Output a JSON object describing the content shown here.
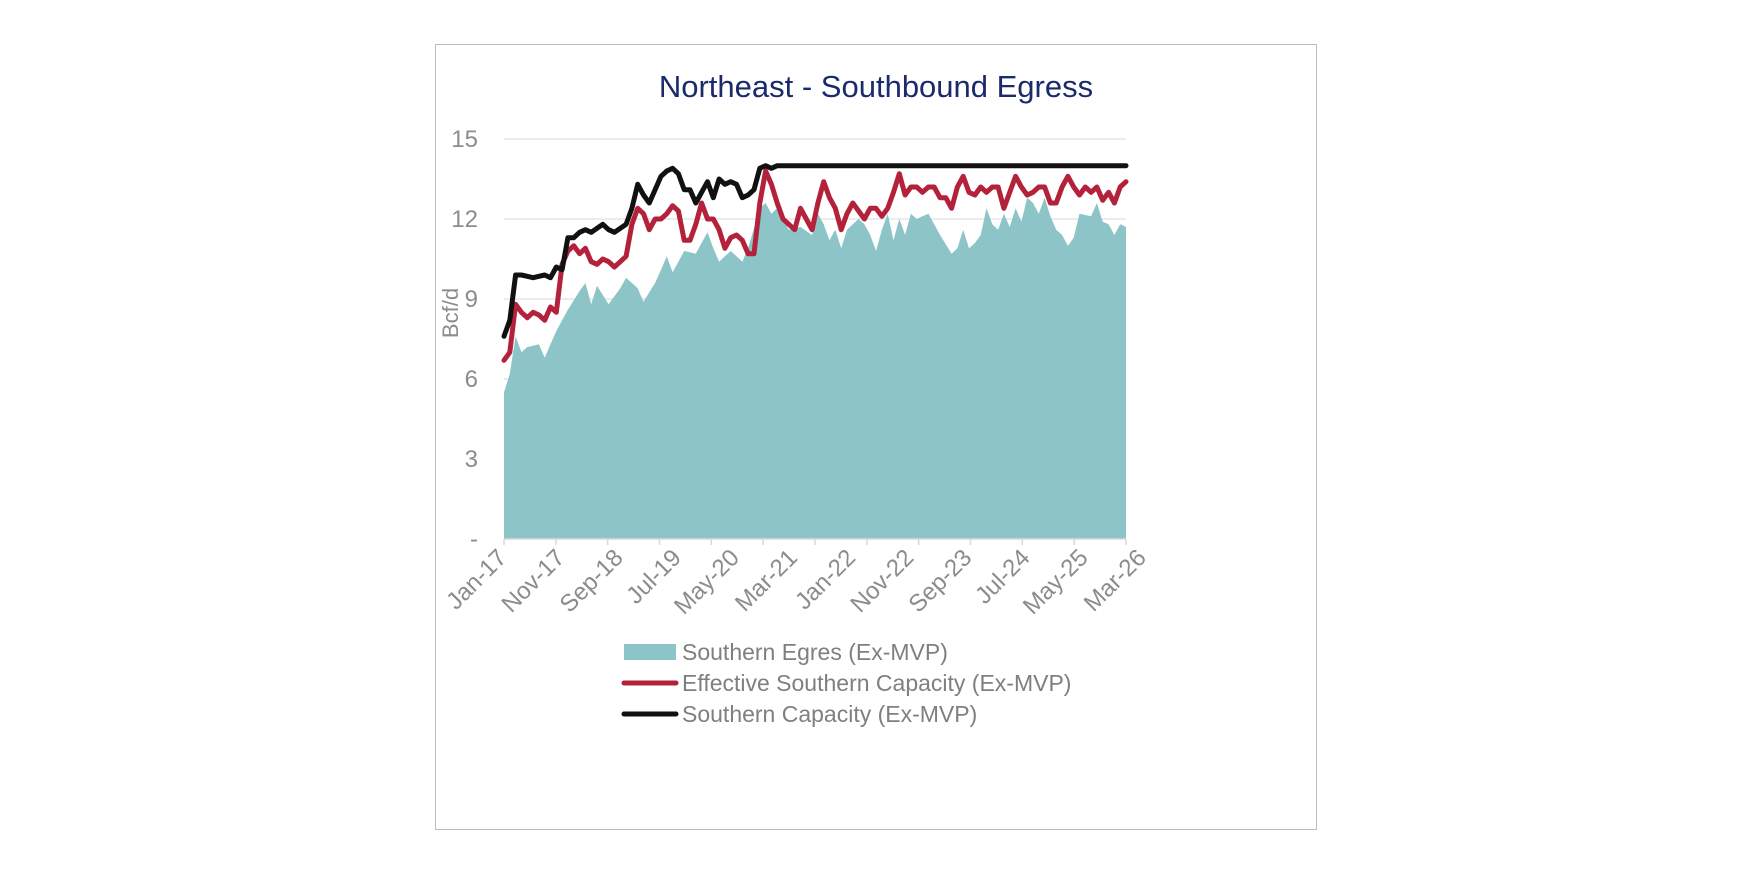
{
  "chart_data": {
    "type": "area",
    "title": "Northeast - Southbound Egress",
    "ylabel": "Bcf/d",
    "xlabel": "",
    "ylim": [
      0,
      15
    ],
    "yticks": [
      0,
      3,
      6,
      9,
      12,
      15
    ],
    "ytick_labels": [
      "-",
      "3",
      "6",
      "9",
      "12",
      "15"
    ],
    "xticks": [
      "Jan-17",
      "Nov-17",
      "Sep-18",
      "Jul-19",
      "May-20",
      "Mar-21",
      "Jan-22",
      "Nov-22",
      "Sep-23",
      "Jul-24",
      "May-25",
      "Mar-26"
    ],
    "grid": "horizontal",
    "legend_position": "bottom",
    "x_start": "Jan-17",
    "x_end": "Dec-26",
    "x_frequency": "monthly",
    "series": [
      {
        "name": "Southern Egres (Ex-MVP)",
        "kind": "area",
        "color": "#8cc4c7",
        "anchors": [
          [
            0,
            5.5
          ],
          [
            1,
            6.2
          ],
          [
            2,
            7.6
          ],
          [
            3,
            7.0
          ],
          [
            4,
            7.2
          ],
          [
            6,
            7.3
          ],
          [
            7,
            6.8
          ],
          [
            9,
            7.8
          ],
          [
            11,
            8.6
          ],
          [
            13,
            9.3
          ],
          [
            14,
            9.6
          ],
          [
            15,
            8.8
          ],
          [
            16,
            9.5
          ],
          [
            18,
            8.8
          ],
          [
            20,
            9.4
          ],
          [
            21,
            9.8
          ],
          [
            23,
            9.4
          ],
          [
            24,
            8.9
          ],
          [
            26,
            9.6
          ],
          [
            28,
            10.6
          ],
          [
            29,
            10.0
          ],
          [
            31,
            10.8
          ],
          [
            33,
            10.7
          ],
          [
            35,
            11.5
          ],
          [
            36,
            10.9
          ],
          [
            37,
            10.4
          ],
          [
            39,
            10.8
          ],
          [
            41,
            10.4
          ],
          [
            42,
            10.9
          ],
          [
            44,
            12.4
          ],
          [
            45,
            12.6
          ],
          [
            46,
            12.2
          ],
          [
            47,
            12.4
          ],
          [
            49,
            11.6
          ],
          [
            51,
            11.7
          ],
          [
            53,
            11.4
          ],
          [
            54,
            12.2
          ],
          [
            55,
            11.8
          ],
          [
            56,
            11.2
          ],
          [
            57,
            11.6
          ],
          [
            58,
            10.9
          ],
          [
            59,
            11.6
          ],
          [
            61,
            12.0
          ],
          [
            62,
            11.8
          ],
          [
            63,
            11.4
          ],
          [
            64,
            10.8
          ],
          [
            65,
            11.6
          ],
          [
            66,
            12.2
          ],
          [
            67,
            11.2
          ],
          [
            68,
            12.0
          ],
          [
            69,
            11.4
          ],
          [
            70,
            12.2
          ],
          [
            71,
            12.0
          ],
          [
            73,
            12.2
          ],
          [
            74,
            11.8
          ],
          [
            75,
            11.4
          ],
          [
            77,
            10.7
          ],
          [
            78,
            10.9
          ],
          [
            79,
            11.6
          ],
          [
            80,
            10.9
          ],
          [
            81,
            11.1
          ],
          [
            82,
            11.4
          ],
          [
            83,
            12.4
          ],
          [
            84,
            11.8
          ],
          [
            85,
            11.6
          ],
          [
            86,
            12.2
          ],
          [
            87,
            11.7
          ],
          [
            88,
            12.4
          ],
          [
            89,
            11.9
          ],
          [
            90,
            12.8
          ],
          [
            91,
            12.6
          ],
          [
            92,
            12.2
          ],
          [
            93,
            12.8
          ],
          [
            94,
            12.1
          ],
          [
            95,
            11.6
          ],
          [
            96,
            11.4
          ],
          [
            97,
            11.0
          ],
          [
            98,
            11.3
          ],
          [
            99,
            12.2
          ],
          [
            101,
            12.1
          ],
          [
            102,
            12.6
          ],
          [
            103,
            11.9
          ],
          [
            104,
            11.8
          ],
          [
            105,
            11.4
          ],
          [
            106,
            11.8
          ],
          [
            107,
            11.7
          ]
        ]
      },
      {
        "name": "Effective Southern Capacity (Ex-MVP)",
        "kind": "line",
        "color": "#b3223a",
        "anchors": [
          [
            0,
            6.7
          ],
          [
            1,
            7.0
          ],
          [
            2,
            8.8
          ],
          [
            3,
            8.5
          ],
          [
            4,
            8.3
          ],
          [
            5,
            8.5
          ],
          [
            6,
            8.4
          ],
          [
            7,
            8.2
          ],
          [
            8,
            8.7
          ],
          [
            9,
            8.5
          ],
          [
            10,
            10.3
          ],
          [
            11,
            10.8
          ],
          [
            12,
            11.0
          ],
          [
            13,
            10.7
          ],
          [
            14,
            10.9
          ],
          [
            15,
            10.4
          ],
          [
            16,
            10.3
          ],
          [
            17,
            10.5
          ],
          [
            18,
            10.4
          ],
          [
            19,
            10.2
          ],
          [
            20,
            10.4
          ],
          [
            21,
            10.6
          ],
          [
            22,
            11.8
          ],
          [
            23,
            12.4
          ],
          [
            24,
            12.2
          ],
          [
            25,
            11.6
          ],
          [
            26,
            12.0
          ],
          [
            27,
            12.0
          ],
          [
            28,
            12.2
          ],
          [
            29,
            12.5
          ],
          [
            30,
            12.3
          ],
          [
            31,
            11.2
          ],
          [
            32,
            11.2
          ],
          [
            33,
            11.8
          ],
          [
            34,
            12.6
          ],
          [
            35,
            12.0
          ],
          [
            36,
            12.0
          ],
          [
            37,
            11.6
          ],
          [
            38,
            10.9
          ],
          [
            39,
            11.3
          ],
          [
            40,
            11.4
          ],
          [
            41,
            11.2
          ],
          [
            42,
            10.7
          ],
          [
            43,
            10.7
          ],
          [
            44,
            12.6
          ],
          [
            45,
            13.8
          ],
          [
            46,
            13.3
          ],
          [
            47,
            12.6
          ],
          [
            48,
            12.0
          ],
          [
            49,
            11.8
          ],
          [
            50,
            11.6
          ],
          [
            51,
            12.4
          ],
          [
            52,
            12.0
          ],
          [
            53,
            11.6
          ],
          [
            54,
            12.6
          ],
          [
            55,
            13.4
          ],
          [
            56,
            12.8
          ],
          [
            57,
            12.4
          ],
          [
            58,
            11.6
          ],
          [
            59,
            12.2
          ],
          [
            60,
            12.6
          ],
          [
            61,
            12.3
          ],
          [
            62,
            12.0
          ],
          [
            63,
            12.4
          ],
          [
            64,
            12.4
          ],
          [
            65,
            12.1
          ],
          [
            66,
            12.4
          ],
          [
            67,
            13.0
          ],
          [
            68,
            13.7
          ],
          [
            69,
            12.9
          ],
          [
            70,
            13.2
          ],
          [
            71,
            13.2
          ],
          [
            72,
            13.0
          ],
          [
            73,
            13.2
          ],
          [
            74,
            13.2
          ],
          [
            75,
            12.8
          ],
          [
            76,
            12.8
          ],
          [
            77,
            12.4
          ],
          [
            78,
            13.2
          ],
          [
            79,
            13.6
          ],
          [
            80,
            13.0
          ],
          [
            81,
            12.9
          ],
          [
            82,
            13.2
          ],
          [
            83,
            13.0
          ],
          [
            84,
            13.2
          ],
          [
            85,
            13.2
          ],
          [
            86,
            12.4
          ],
          [
            87,
            13.0
          ],
          [
            88,
            13.6
          ],
          [
            89,
            13.2
          ],
          [
            90,
            12.9
          ],
          [
            91,
            13.0
          ],
          [
            92,
            13.2
          ],
          [
            93,
            13.2
          ],
          [
            94,
            12.6
          ],
          [
            95,
            12.6
          ],
          [
            96,
            13.2
          ],
          [
            97,
            13.6
          ],
          [
            98,
            13.2
          ],
          [
            99,
            12.9
          ],
          [
            100,
            13.2
          ],
          [
            101,
            13.0
          ],
          [
            102,
            13.2
          ],
          [
            103,
            12.7
          ],
          [
            104,
            13.0
          ],
          [
            105,
            12.6
          ],
          [
            106,
            13.2
          ],
          [
            107,
            13.4
          ]
        ]
      },
      {
        "name": "Southern Capacity (Ex-MVP)",
        "kind": "line",
        "color": "#111111",
        "anchors": [
          [
            0,
            7.6
          ],
          [
            1,
            8.2
          ],
          [
            2,
            9.9
          ],
          [
            3,
            9.9
          ],
          [
            5,
            9.8
          ],
          [
            7,
            9.9
          ],
          [
            8,
            9.8
          ],
          [
            9,
            10.2
          ],
          [
            10,
            10.1
          ],
          [
            11,
            11.3
          ],
          [
            12,
            11.3
          ],
          [
            13,
            11.5
          ],
          [
            14,
            11.6
          ],
          [
            15,
            11.5
          ],
          [
            17,
            11.8
          ],
          [
            18,
            11.6
          ],
          [
            19,
            11.5
          ],
          [
            21,
            11.8
          ],
          [
            22,
            12.4
          ],
          [
            23,
            13.3
          ],
          [
            24,
            12.9
          ],
          [
            25,
            12.6
          ],
          [
            26,
            13.1
          ],
          [
            27,
            13.6
          ],
          [
            28,
            13.8
          ],
          [
            29,
            13.9
          ],
          [
            30,
            13.7
          ],
          [
            31,
            13.1
          ],
          [
            32,
            13.1
          ],
          [
            33,
            12.6
          ],
          [
            34,
            13.0
          ],
          [
            35,
            13.4
          ],
          [
            36,
            12.8
          ],
          [
            37,
            13.5
          ],
          [
            38,
            13.3
          ],
          [
            39,
            13.4
          ],
          [
            40,
            13.3
          ],
          [
            41,
            12.8
          ],
          [
            42,
            12.9
          ],
          [
            43,
            13.1
          ],
          [
            44,
            13.9
          ],
          [
            45,
            14.0
          ],
          [
            46,
            13.9
          ],
          [
            47,
            14.0
          ],
          [
            107,
            14.0
          ]
        ]
      }
    ]
  }
}
